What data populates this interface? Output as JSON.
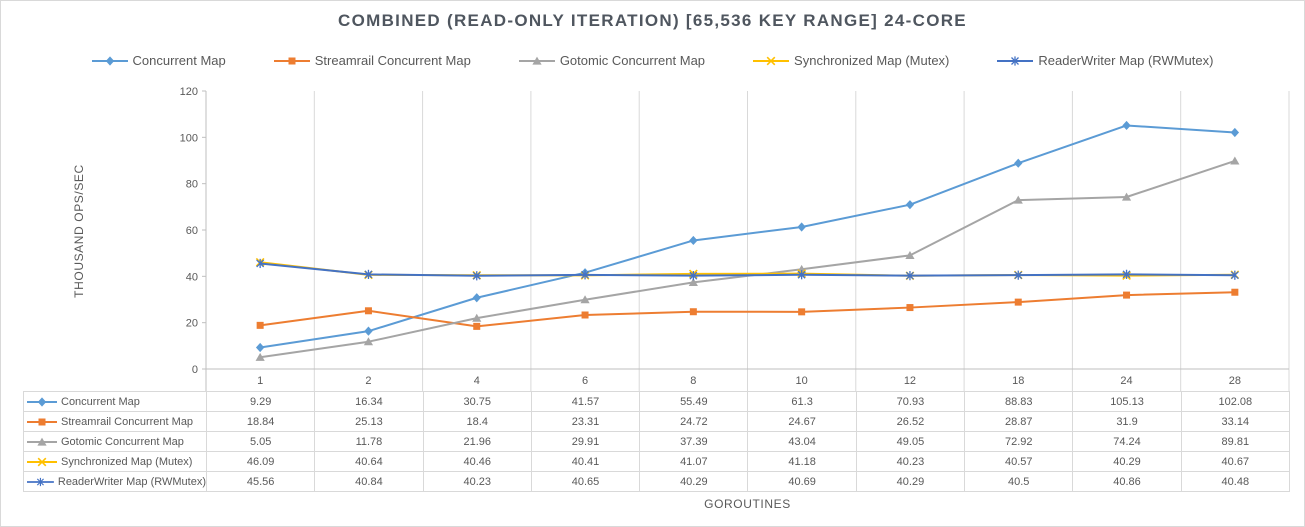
{
  "chart_data": {
    "type": "line",
    "title": "COMBINED (READ-ONLY ITERATION) [65,536 KEY RANGE] 24-CORE",
    "xlabel": "GOROUTINES",
    "ylabel": "THOUSAND OPS/SEC",
    "ylim": [
      0,
      120
    ],
    "y_ticks": [
      0,
      20,
      40,
      60,
      80,
      100,
      120
    ],
    "grid": "vertical-only",
    "legend_position": "top",
    "data_table_shown": true,
    "categories": [
      "1",
      "2",
      "4",
      "6",
      "8",
      "10",
      "12",
      "18",
      "24",
      "28"
    ],
    "series": [
      {
        "name": "Concurrent Map",
        "color": "#5B9BD5",
        "marker": "diamond",
        "values": [
          9.29,
          16.34,
          30.75,
          41.57,
          55.49,
          61.3,
          70.93,
          88.83,
          105.13,
          102.08
        ]
      },
      {
        "name": "Streamrail Concurrent Map",
        "color": "#ED7D31",
        "marker": "square",
        "values": [
          18.84,
          25.13,
          18.4,
          23.31,
          24.72,
          24.67,
          26.52,
          28.87,
          31.9,
          33.14
        ]
      },
      {
        "name": "Gotomic Concurrent Map",
        "color": "#A5A5A5",
        "marker": "triangle",
        "values": [
          5.05,
          11.78,
          21.96,
          29.91,
          37.39,
          43.04,
          49.05,
          72.92,
          74.24,
          89.81
        ]
      },
      {
        "name": "Synchronized Map (Mutex)",
        "color": "#FFC000",
        "marker": "x",
        "values": [
          46.09,
          40.64,
          40.46,
          40.41,
          41.07,
          41.18,
          40.23,
          40.57,
          40.29,
          40.67
        ]
      },
      {
        "name": "ReaderWriter Map (RWMutex)",
        "color": "#4472C4",
        "marker": "star",
        "values": [
          45.56,
          40.84,
          40.23,
          40.65,
          40.29,
          40.69,
          40.29,
          40.5,
          40.86,
          40.48
        ]
      }
    ],
    "colors": {
      "title_text": "#4f565f",
      "axis_text": "#595959",
      "gridline": "#d9d9d9",
      "axis_line": "#bfbfbf",
      "table_border": "#d9d9d9"
    }
  }
}
